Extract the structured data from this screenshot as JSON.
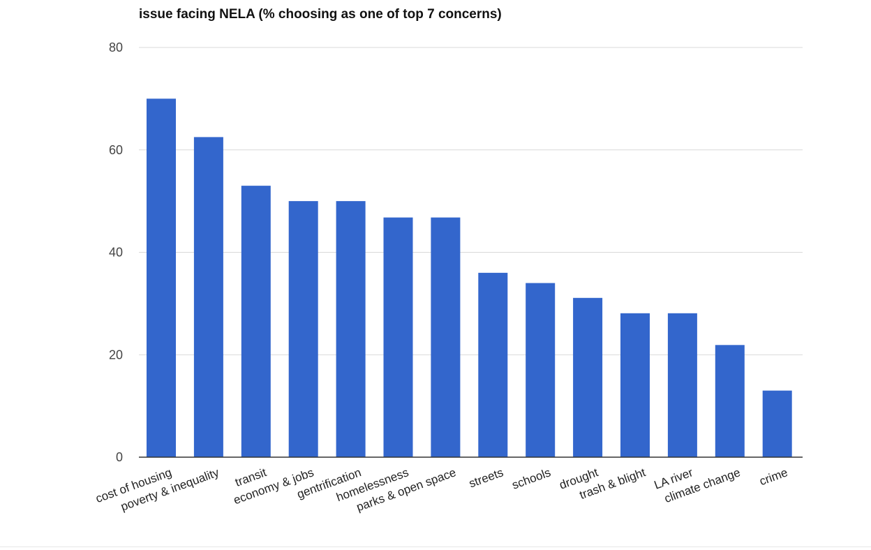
{
  "chart_data": {
    "type": "bar",
    "title": "issue facing NELA (% choosing as one of top 7 concerns)",
    "xlabel": "",
    "ylabel": "",
    "categories": [
      "cost of housing",
      "poverty & inequality",
      "transit",
      "economy & jobs",
      "gentrification",
      "homelessness",
      "parks & open space",
      "streets",
      "schools",
      "drought",
      "trash & blight",
      "LA river",
      "climate change",
      "crime"
    ],
    "values": [
      70,
      62.5,
      53,
      50,
      50,
      46.8,
      46.8,
      36,
      34,
      31.1,
      28.1,
      28.1,
      21.9,
      13
    ],
    "ylim": [
      0,
      80
    ],
    "yticks": [
      0,
      20,
      40,
      60,
      80
    ],
    "grid": true,
    "legend": "none",
    "bar_color": "#3366cc",
    "grid_color": "#d9d9d9",
    "axis_color": "#333333"
  }
}
